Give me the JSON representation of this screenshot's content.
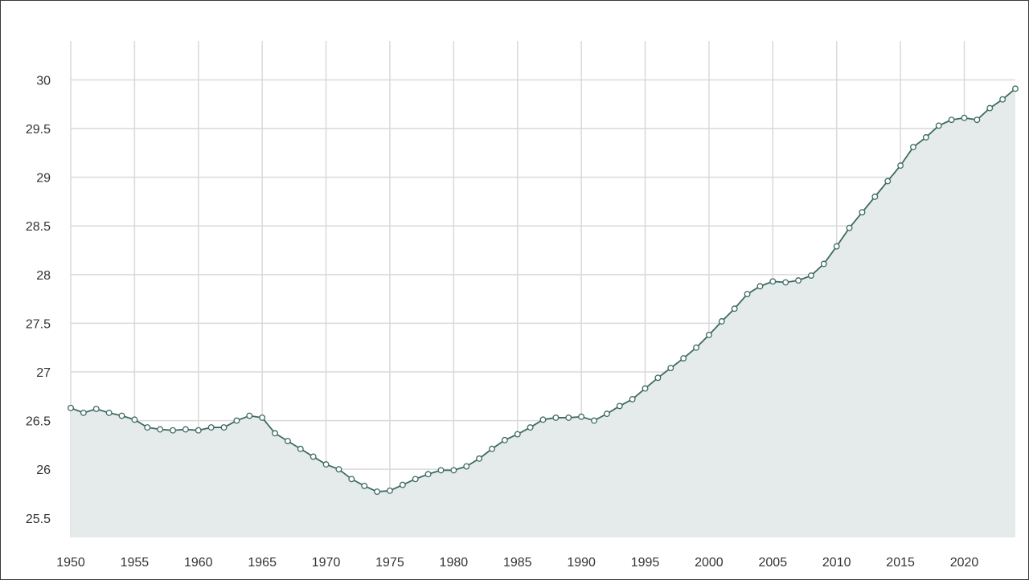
{
  "chart_data": {
    "type": "area",
    "title": "",
    "xlabel": "",
    "ylabel": "",
    "xlim": [
      1950,
      2024
    ],
    "ylim": [
      25.3,
      30.4
    ],
    "x_ticks": [
      1950,
      1955,
      1960,
      1965,
      1970,
      1975,
      1980,
      1985,
      1990,
      1995,
      2000,
      2005,
      2010,
      2015,
      2020
    ],
    "y_ticks": [
      25.5,
      26,
      26.5,
      27,
      27.5,
      28,
      28.5,
      29,
      29.5,
      30
    ],
    "x_tick_labels": [
      "1950",
      "1955",
      "1960",
      "1965",
      "1970",
      "1975",
      "1980",
      "1985",
      "1990",
      "1995",
      "2000",
      "2005",
      "2010",
      "2015",
      "2020"
    ],
    "y_tick_labels": [
      "25.5",
      "26",
      "26.5",
      "27",
      "27.5",
      "28",
      "28.5",
      "29",
      "29.5",
      "30"
    ],
    "grid": true,
    "legend": "none",
    "colors": {
      "line": "#3d6b62",
      "fill": "#e5ebeb",
      "marker_fill": "#ffffff",
      "grid": "#d9d9d9"
    },
    "series": [
      {
        "x": [
          1950,
          1951,
          1952,
          1953,
          1954,
          1955,
          1956,
          1957,
          1958,
          1959,
          1960,
          1961,
          1962,
          1963,
          1964,
          1965,
          1966,
          1967,
          1968,
          1969,
          1970,
          1971,
          1972,
          1973,
          1974,
          1975,
          1976,
          1977,
          1978,
          1979,
          1980,
          1981,
          1982,
          1983,
          1984,
          1985,
          1986,
          1987,
          1988,
          1989,
          1990,
          1991,
          1992,
          1993,
          1994,
          1995,
          1996,
          1997,
          1998,
          1999,
          2000,
          2001,
          2002,
          2003,
          2004,
          2005,
          2006,
          2007,
          2008,
          2009,
          2010,
          2011,
          2012,
          2013,
          2014,
          2015,
          2016,
          2017,
          2018,
          2019,
          2020,
          2021,
          2022,
          2023,
          2024
        ],
        "values": [
          26.63,
          26.58,
          26.62,
          26.58,
          26.55,
          26.51,
          26.43,
          26.41,
          26.4,
          26.41,
          26.4,
          26.43,
          26.43,
          26.5,
          26.55,
          26.53,
          26.37,
          26.29,
          26.21,
          26.13,
          26.05,
          26.0,
          25.9,
          25.83,
          25.77,
          25.78,
          25.84,
          25.9,
          25.95,
          25.99,
          25.99,
          26.03,
          26.11,
          26.21,
          26.3,
          26.36,
          26.43,
          26.51,
          26.53,
          26.53,
          26.54,
          26.5,
          26.57,
          26.65,
          26.72,
          26.83,
          26.94,
          27.04,
          27.14,
          27.25,
          27.38,
          27.52,
          27.65,
          27.8,
          27.88,
          27.93,
          27.92,
          27.94,
          27.99,
          28.11,
          28.29,
          28.48,
          28.64,
          28.8,
          28.96,
          29.12,
          29.31,
          29.41,
          29.53,
          29.59,
          29.61,
          29.59,
          29.71,
          29.8,
          29.91
        ]
      }
    ]
  }
}
